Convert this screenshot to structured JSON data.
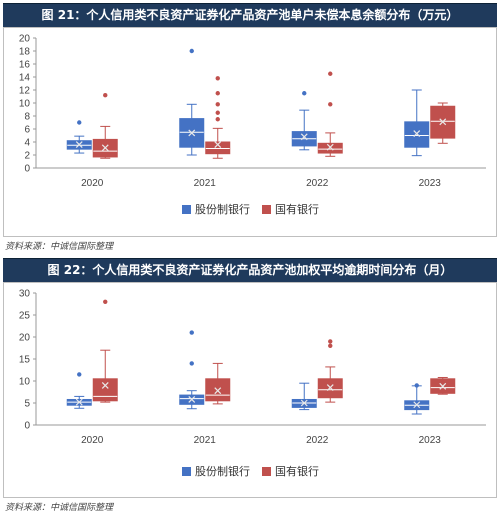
{
  "colors": {
    "blue": "#4472c4",
    "red": "#c0504d",
    "header": "#1f3a5c"
  },
  "chart_data": [
    {
      "type": "box",
      "title": "图 21：个人信用类不良资产证券化产品资产池单户未偿本息余额分布（万元）",
      "categories": [
        "2020",
        "2021",
        "2022",
        "2023"
      ],
      "ylim": [
        0,
        20
      ],
      "yticks": [
        0,
        2,
        4,
        6,
        8,
        10,
        12,
        14,
        16,
        18,
        20
      ],
      "grid": false,
      "legend_position": "bottom",
      "series": [
        {
          "name": "股份制银行",
          "boxes": [
            {
              "min": 2.3,
              "q1": 2.9,
              "median": 3.5,
              "q3": 4.2,
              "max": 4.9,
              "mean": 3.6,
              "outliers": [
                7.0
              ]
            },
            {
              "min": 2.0,
              "q1": 3.2,
              "median": 5.5,
              "q3": 7.6,
              "max": 9.8,
              "mean": 5.4,
              "outliers": [
                18.0
              ]
            },
            {
              "min": 2.8,
              "q1": 3.4,
              "median": 4.5,
              "q3": 5.6,
              "max": 8.9,
              "mean": 4.8,
              "outliers": [
                11.5
              ]
            },
            {
              "min": 1.9,
              "q1": 3.2,
              "median": 5.0,
              "q3": 7.1,
              "max": 12.0,
              "mean": 5.3,
              "outliers": []
            }
          ]
        },
        {
          "name": "国有银行",
          "boxes": [
            {
              "min": 1.5,
              "q1": 1.7,
              "median": 2.6,
              "q3": 4.4,
              "max": 6.4,
              "mean": 3.1,
              "outliers": [
                11.2
              ]
            },
            {
              "min": 1.5,
              "q1": 2.2,
              "median": 3.0,
              "q3": 4.0,
              "max": 6.1,
              "mean": 3.6,
              "outliers": [
                7.5,
                8.5,
                9.8,
                11.5,
                13.8
              ]
            },
            {
              "min": 1.8,
              "q1": 2.3,
              "median": 2.9,
              "q3": 3.8,
              "max": 5.4,
              "mean": 3.2,
              "outliers": [
                9.8,
                14.5
              ]
            },
            {
              "min": 3.8,
              "q1": 4.6,
              "median": 7.2,
              "q3": 9.5,
              "max": 10.0,
              "mean": 7.1,
              "outliers": []
            }
          ]
        }
      ]
    },
    {
      "type": "box",
      "title": "图 22：个人信用类不良资产证券化产品资产池加权平均逾期时间分布（月）",
      "categories": [
        "2020",
        "2021",
        "2022",
        "2023"
      ],
      "ylim": [
        0,
        30
      ],
      "yticks": [
        0,
        5,
        10,
        15,
        20,
        25,
        30
      ],
      "grid": false,
      "legend_position": "bottom",
      "series": [
        {
          "name": "股份制银行",
          "boxes": [
            {
              "min": 3.8,
              "q1": 4.5,
              "median": 5.2,
              "q3": 5.8,
              "max": 6.5,
              "mean": 5.2,
              "outliers": [
                11.5
              ]
            },
            {
              "min": 3.7,
              "q1": 4.7,
              "median": 6.0,
              "q3": 6.8,
              "max": 7.8,
              "mean": 5.8,
              "outliers": [
                14.0,
                21.0
              ]
            },
            {
              "min": 3.5,
              "q1": 4.0,
              "median": 5.0,
              "q3": 5.8,
              "max": 9.5,
              "mean": 5.0,
              "outliers": []
            },
            {
              "min": 2.5,
              "q1": 3.5,
              "median": 4.5,
              "q3": 5.5,
              "max": 8.9,
              "mean": 4.6,
              "outliers": [
                9.0
              ]
            }
          ]
        },
        {
          "name": "国有银行",
          "boxes": [
            {
              "min": 5.2,
              "q1": 5.5,
              "median": 6.5,
              "q3": 10.5,
              "max": 17.0,
              "mean": 9.0,
              "outliers": [
                28.0
              ]
            },
            {
              "min": 4.8,
              "q1": 5.5,
              "median": 6.8,
              "q3": 10.5,
              "max": 14.0,
              "mean": 7.8,
              "outliers": []
            },
            {
              "min": 5.2,
              "q1": 6.2,
              "median": 8.0,
              "q3": 10.5,
              "max": 13.2,
              "mean": 8.5,
              "outliers": [
                18.0,
                19.0
              ]
            },
            {
              "min": 7.0,
              "q1": 7.2,
              "median": 8.5,
              "q3": 10.5,
              "max": 10.8,
              "mean": 8.8,
              "outliers": []
            }
          ]
        }
      ]
    }
  ],
  "sources": [
    "资料来源：中诚信国际整理",
    "资料来源：中诚信国际整理"
  ]
}
